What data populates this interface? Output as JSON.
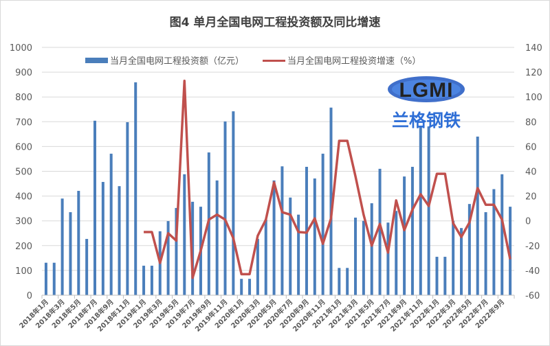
{
  "chart_data": {
    "type": "bar+line",
    "title": "图4 单月全国电网工程投资额及同比增速",
    "categories": [
      "2018年1月",
      "2018年2月",
      "2018年3月",
      "2018年4月",
      "2018年5月",
      "2018年6月",
      "2018年7月",
      "2018年8月",
      "2018年9月",
      "2018年10月",
      "2018年11月",
      "2018年12月",
      "2019年1月",
      "2019年2月",
      "2019年3月",
      "2019年4月",
      "2019年5月",
      "2019年6月",
      "2019年7月",
      "2019年8月",
      "2019年9月",
      "2019年10月",
      "2019年11月",
      "2019年12月",
      "2020年1月",
      "2020年2月",
      "2020年3月",
      "2020年4月",
      "2020年5月",
      "2020年6月",
      "2020年7月",
      "2020年8月",
      "2020年9月",
      "2020年10月",
      "2020年11月",
      "2020年12月",
      "2021年1月",
      "2021年2月",
      "2021年3月",
      "2021年4月",
      "2021年5月",
      "2021年6月",
      "2021年7月",
      "2021年8月",
      "2021年9月",
      "2021年10月",
      "2021年11月",
      "2021年12月",
      "2022年1月",
      "2022年2月",
      "2022年3月",
      "2022年4月",
      "2022年5月",
      "2022年6月",
      "2022年7月",
      "2022年8月",
      "2022年9月",
      "2022年10月"
    ],
    "series": [
      {
        "name": "当月全国电网工程投资额（亿元）",
        "type": "bar",
        "axis": "left",
        "color": "#4a7ebb",
        "values": [
          131,
          131,
          390,
          335,
          421,
          227,
          704,
          457,
          571,
          440,
          698,
          859,
          119,
          119,
          258,
          299,
          352,
          488,
          377,
          357,
          576,
          463,
          701,
          742,
          66,
          66,
          227,
          305,
          463,
          520,
          394,
          325,
          518,
          471,
          571,
          757,
          110,
          110,
          313,
          300,
          371,
          510,
          293,
          340,
          479,
          518,
          681,
          681,
          155,
          155,
          300,
          271,
          368,
          640,
          335,
          428,
          488,
          357
        ]
      },
      {
        "name": "当月全国电网工程投资增速（%）",
        "type": "line",
        "axis": "right",
        "color": "#c0504d",
        "values": [
          null,
          null,
          null,
          null,
          null,
          null,
          null,
          null,
          null,
          null,
          null,
          null,
          -9,
          -9,
          -34,
          -10,
          -16,
          113,
          -46,
          -24,
          1,
          5,
          1,
          -14,
          -43,
          -43,
          -12,
          1,
          31,
          7,
          5,
          -9,
          -9.5,
          2,
          -18.5,
          2,
          64.6,
          64.6,
          36,
          5,
          -20,
          -2.5,
          -25.6,
          16.5,
          -7.5,
          9,
          21.5,
          12,
          38,
          38,
          -2,
          -13,
          -1.3,
          26.4,
          13,
          13,
          1,
          -31
        ]
      }
    ],
    "x_tick_labels": [
      "2018年1月",
      "2018年3月",
      "2018年5月",
      "2018年7月",
      "2018年9月",
      "2018年11月",
      "2019年1月",
      "2019年3月",
      "2019年5月",
      "2019年7月",
      "2019年9月",
      "2019年11月",
      "2020年1月",
      "2020年3月",
      "2020年5月",
      "2020年7月",
      "2020年9月",
      "2020年11月",
      "2021年1月",
      "2021年3月",
      "2021年5月",
      "2021年7月",
      "2021年9月",
      "2021年11月",
      "2022年1月",
      "2022年3月",
      "2022年5月",
      "2022年7月",
      "2022年9月"
    ],
    "y_left": {
      "range": [
        0,
        1000
      ],
      "ticks": [
        0,
        100,
        200,
        300,
        400,
        500,
        600,
        700,
        800,
        900,
        1000
      ]
    },
    "y_right": {
      "range": [
        -60,
        140
      ],
      "ticks": [
        -60,
        -40,
        -20,
        0,
        20,
        40,
        60,
        80,
        100,
        120,
        140
      ]
    },
    "grid": true,
    "legend": "top"
  },
  "watermark": {
    "text": "LGMI",
    "subtext": "兰格钢铁"
  }
}
